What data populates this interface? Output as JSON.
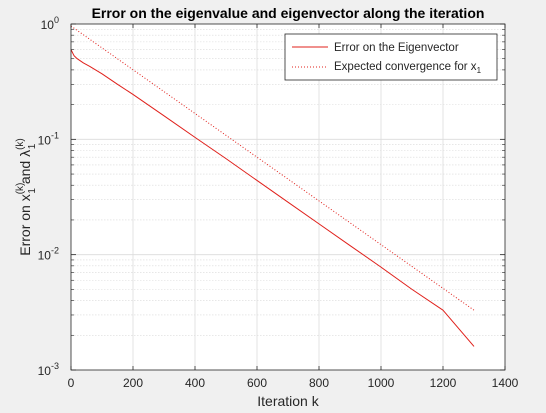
{
  "chart_data": {
    "type": "line",
    "title": "Error on the eigenvalue and eigenvector along the iteration",
    "xlabel": "Iteration k",
    "ylabel": {
      "base": "Error on x",
      "sup1": "(k)",
      "sub1": "1",
      "middle": " and λ",
      "sup2": "(k)",
      "sub2": "1"
    },
    "xlim": [
      0,
      1400
    ],
    "ylim": [
      0.001,
      1
    ],
    "yscale": "log",
    "grid": true,
    "minor_grid": true,
    "legend_position": "top-right",
    "x_ticks": [
      {
        "value": 0,
        "label": "0"
      },
      {
        "value": 200,
        "label": "200"
      },
      {
        "value": 400,
        "label": "400"
      },
      {
        "value": 600,
        "label": "600"
      },
      {
        "value": 800,
        "label": "800"
      },
      {
        "value": 1000,
        "label": "1000"
      },
      {
        "value": 1200,
        "label": "1200"
      },
      {
        "value": 1400,
        "label": "1400"
      }
    ],
    "y_ticks": [
      {
        "value": 1,
        "base": "10",
        "exp": "0"
      },
      {
        "value": 0.1,
        "base": "10",
        "exp": "-1"
      },
      {
        "value": 0.01,
        "base": "10",
        "exp": "-2"
      },
      {
        "value": 0.001,
        "base": "10",
        "exp": "-3"
      }
    ],
    "series": [
      {
        "name": "Error on the Eigenvector",
        "color": "#e0201b",
        "style": "solid",
        "x": [
          0,
          10,
          20,
          40,
          60,
          100,
          150,
          200,
          300,
          400,
          500,
          600,
          700,
          800,
          900,
          1000,
          1100,
          1200,
          1300
        ],
        "y": [
          0.6,
          0.53,
          0.5,
          0.46,
          0.43,
          0.37,
          0.3,
          0.245,
          0.16,
          0.104,
          0.068,
          0.044,
          0.0285,
          0.0185,
          0.012,
          0.0078,
          0.005,
          0.0033,
          0.0016
        ]
      },
      {
        "name": "Expected convergence for x",
        "name_sub": "1",
        "color": "#e0201b",
        "style": "dotted",
        "x": [
          0,
          1300
        ],
        "y": [
          0.96,
          0.0033
        ]
      }
    ]
  }
}
